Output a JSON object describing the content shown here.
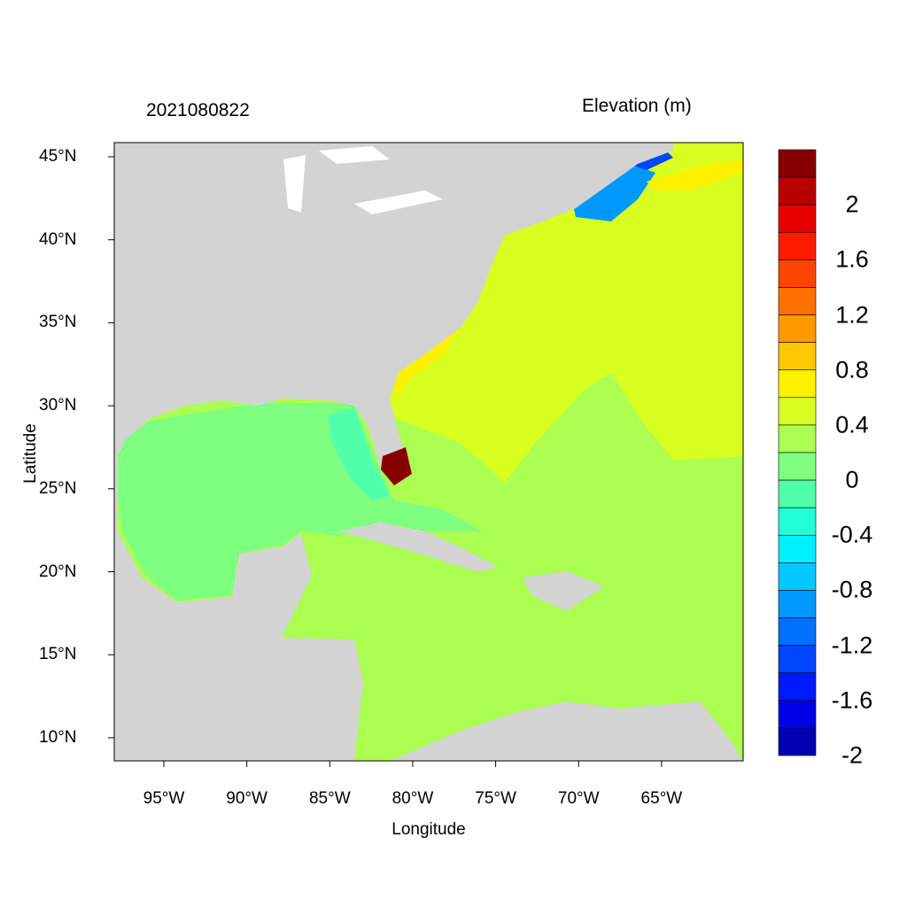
{
  "map": {
    "date_label": "2021080822",
    "colorbar_title": "Elevation (m)",
    "xlabel": "Longitude",
    "ylabel": "Latitude",
    "x_ticks": [
      "95°W",
      "90°W",
      "85°W",
      "80°W",
      "75°W",
      "70°W",
      "65°W"
    ],
    "x_tick_values": [
      -95,
      -90,
      -85,
      -80,
      -75,
      -70,
      -65
    ],
    "y_ticks": [
      "45°N",
      "40°N",
      "35°N",
      "30°N",
      "25°N",
      "20°N",
      "15°N",
      "10°N"
    ],
    "y_tick_values": [
      45,
      40,
      35,
      30,
      25,
      20,
      15,
      10
    ],
    "lon_range": [
      -98,
      -60.1
    ],
    "lat_range": [
      8.6,
      45.85
    ],
    "land_color": "#d3d3d3",
    "colorbar": {
      "labels": [
        "2",
        "1.6",
        "1.2",
        "0.8",
        "0.4",
        "0",
        "-0.4",
        "-0.8",
        "-1.2",
        "-1.6",
        "-2"
      ],
      "colors_top_to_bottom": [
        "#870000",
        "#b80000",
        "#e60000",
        "#ff1a00",
        "#ff4500",
        "#ff7000",
        "#ff9900",
        "#ffc800",
        "#fff000",
        "#d8ff20",
        "#aaff50",
        "#7fff7f",
        "#50ffaa",
        "#20ffd8",
        "#00f0ff",
        "#00c8ff",
        "#0099ff",
        "#0070ff",
        "#0045ff",
        "#001aff",
        "#0000e6",
        "#0000b0"
      ]
    }
  }
}
